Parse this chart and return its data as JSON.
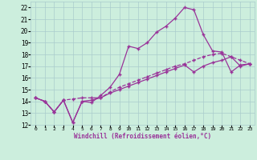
{
  "xlabel": "Windchill (Refroidissement éolien,°C)",
  "bg_color": "#cceedd",
  "grid_color": "#aacccc",
  "line_color": "#993399",
  "xlim": [
    -0.5,
    23.5
  ],
  "ylim": [
    12,
    22.5
  ],
  "xticks": [
    0,
    1,
    2,
    3,
    4,
    5,
    6,
    7,
    8,
    9,
    10,
    11,
    12,
    13,
    14,
    15,
    16,
    17,
    18,
    19,
    20,
    21,
    22,
    23
  ],
  "yticks": [
    12,
    13,
    14,
    15,
    16,
    17,
    18,
    19,
    20,
    21,
    22
  ],
  "line1_x": [
    0,
    1,
    2,
    3,
    4,
    5,
    6,
    7,
    8,
    9,
    10,
    11,
    12,
    13,
    14,
    15,
    16,
    17,
    18,
    19,
    20,
    21,
    22,
    23
  ],
  "line1_y": [
    14.3,
    14.0,
    13.1,
    14.1,
    12.2,
    14.0,
    13.9,
    14.5,
    15.2,
    16.3,
    18.7,
    18.5,
    19.0,
    19.9,
    20.4,
    21.1,
    22.0,
    21.8,
    19.7,
    18.3,
    18.2,
    16.5,
    17.1,
    17.2
  ],
  "line2_x": [
    0,
    1,
    2,
    3,
    4,
    5,
    6,
    7,
    8,
    9,
    10,
    11,
    12,
    13,
    14,
    15,
    16,
    17,
    18,
    19,
    20,
    21,
    22,
    23
  ],
  "line2_y": [
    14.3,
    14.0,
    13.1,
    14.1,
    14.2,
    14.3,
    14.3,
    14.3,
    14.8,
    15.2,
    15.5,
    15.8,
    16.1,
    16.4,
    16.7,
    17.0,
    17.2,
    17.5,
    17.8,
    18.0,
    18.1,
    17.8,
    17.5,
    17.2
  ],
  "line3_x": [
    0,
    1,
    2,
    3,
    4,
    5,
    6,
    7,
    8,
    9,
    10,
    11,
    12,
    13,
    14,
    15,
    16,
    17,
    18,
    19,
    20,
    21,
    22,
    23
  ],
  "line3_y": [
    14.3,
    14.0,
    13.1,
    14.1,
    12.2,
    14.0,
    14.1,
    14.3,
    14.7,
    15.0,
    15.3,
    15.6,
    15.9,
    16.2,
    16.5,
    16.8,
    17.1,
    16.5,
    17.0,
    17.3,
    17.5,
    17.8,
    17.0,
    17.2
  ]
}
